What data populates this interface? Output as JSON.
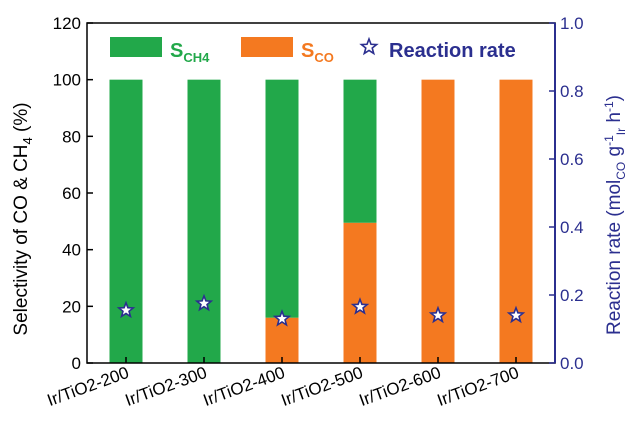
{
  "chart_data": {
    "type": "bar",
    "categories": [
      "Ir/TiO2-200",
      "Ir/TiO2-300",
      "Ir/TiO2-400",
      "Ir/TiO2-500",
      "Ir/TiO2-600",
      "Ir/TiO2-700"
    ],
    "series": [
      {
        "name": "S_CO",
        "display_main": "S",
        "display_sub": "CO",
        "color": "#f47920",
        "values": [
          0,
          0,
          16,
          49.5,
          100,
          100
        ]
      },
      {
        "name": "S_CH4",
        "display_main": "S",
        "display_sub": "CH4",
        "color": "#22a84a",
        "values": [
          100,
          100,
          84,
          50.5,
          0,
          0
        ]
      }
    ],
    "rate_series": {
      "name": "Reaction rate",
      "marker": "star",
      "color": "#2b2f8f",
      "values": [
        0.155,
        0.175,
        0.13,
        0.165,
        0.14,
        0.14
      ]
    },
    "stacked": true,
    "ylim": [
      0,
      120
    ],
    "yticks": [
      "0",
      "20",
      "40",
      "60",
      "80",
      "100",
      "120"
    ],
    "y2lim": [
      0,
      1.0
    ],
    "y2ticks": [
      "0.0",
      "0.2",
      "0.4",
      "0.6",
      "0.8",
      "1.0"
    ],
    "ylabel": {
      "part1": "Selectivity of CO & CH",
      "sub": "4",
      "part2": " (%)"
    },
    "y2label": {
      "part1": "Reaction rate (mol",
      "sub1": "CO",
      "mid1": " g",
      "sup1": "-1",
      "sub2": "Ir",
      "mid2": " h",
      "sup2": "-1",
      "end": ")"
    },
    "legend_placement": "top",
    "grid": false
  }
}
